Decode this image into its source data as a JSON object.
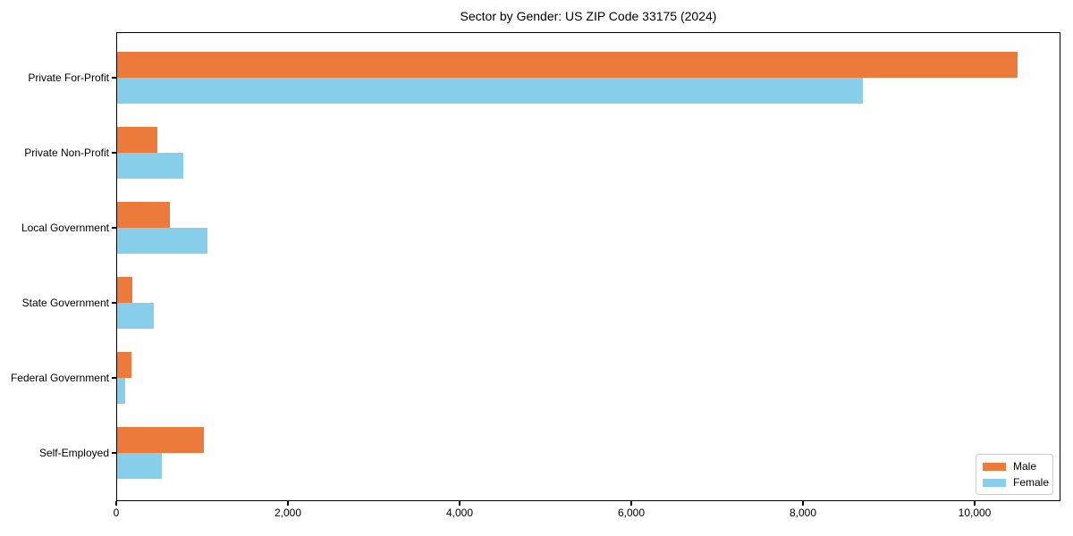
{
  "chart_data": {
    "type": "bar",
    "orientation": "horizontal",
    "title": "Sector by Gender: US ZIP Code 33175 (2024)",
    "categories": [
      "Private For-Profit",
      "Private Non-Profit",
      "Local Government",
      "State Government",
      "Federal Government",
      "Self-Employed"
    ],
    "series": [
      {
        "name": "Male",
        "color": "#ec7a3a",
        "values": [
          10500,
          480,
          620,
          190,
          180,
          1020
        ]
      },
      {
        "name": "Female",
        "color": "#87ceeb",
        "values": [
          8700,
          780,
          1060,
          440,
          100,
          530
        ]
      }
    ],
    "xlim": [
      0,
      11000
    ],
    "xticks": [
      0,
      2000,
      4000,
      6000,
      8000,
      10000
    ],
    "xtick_labels": [
      "0",
      "2,000",
      "4,000",
      "6,000",
      "8,000",
      "10,000"
    ],
    "grid": false,
    "background": "#ffffff",
    "axis_color": "#000000",
    "legend": {
      "position": "lower-right"
    }
  }
}
